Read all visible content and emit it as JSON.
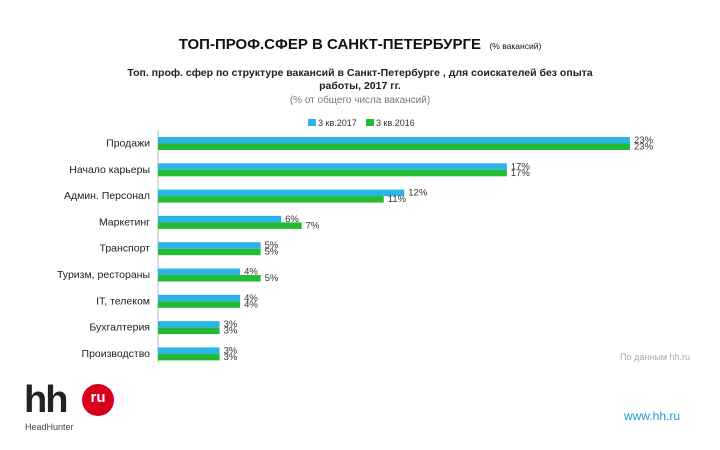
{
  "slide": {
    "title": "ТОП-ПРОФ.СФЕР В САНКТ-ПЕТЕРБУРГЕ",
    "title_note": "(% вакансий)"
  },
  "source": "По данным hh.ru",
  "website": "www.hh.ru",
  "logo": {
    "main": "hh",
    "badge": "ru",
    "subtitle": "HeadHunter"
  },
  "colors": {
    "series_2017": "#29b6e6",
    "series_2016": "#22bb33",
    "logo_red": "#d6001c"
  },
  "chart_data": {
    "type": "bar",
    "orientation": "horizontal",
    "title_lines": [
      "Топ. проф. сфер по структуре вакансий в Санкт-Петербурге , для соискателей без опыта",
      "работы, 2017 гг."
    ],
    "subtitle": "(% от общего числа вакансий)",
    "legend_position": "top",
    "categories": [
      "Продажи",
      "Начало карьеры",
      "Админ. Персонал",
      "Маркетинг",
      "Транспорт",
      "Туризм, рестораны",
      "IT, телеком",
      "Бухгалтерия",
      "Производство"
    ],
    "series": [
      {
        "name": "3 кв.2017",
        "color": "#29b6e6",
        "values": [
          23,
          17,
          12,
          6,
          5,
          4,
          4,
          3,
          3
        ],
        "labels": [
          "23%",
          "17%",
          "12%",
          "6%",
          "5%",
          "4%",
          "4%",
          "3%",
          "3%"
        ]
      },
      {
        "name": "3 кв.2016",
        "color": "#22bb33",
        "values": [
          23,
          17,
          11,
          7,
          5,
          5,
          4,
          3,
          3
        ],
        "labels": [
          "23%",
          "17%",
          "11%",
          "7%",
          "5%",
          "5%",
          "4%",
          "3%",
          "3%"
        ]
      }
    ],
    "xlim": [
      0,
      23
    ],
    "grid": false
  }
}
